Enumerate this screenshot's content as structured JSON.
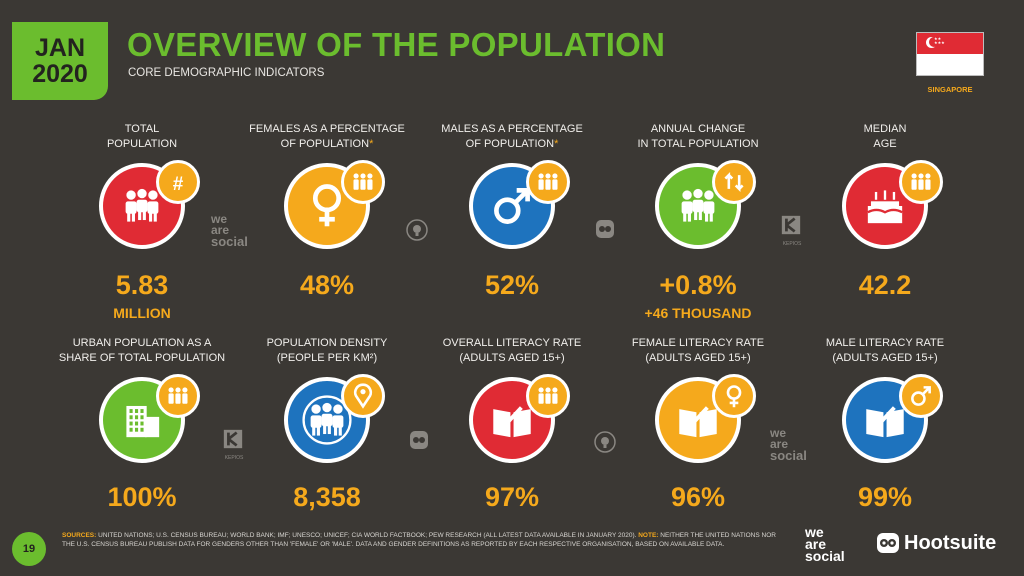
{
  "header": {
    "month": "JAN",
    "year": "2020",
    "title": "OVERVIEW OF THE POPULATION",
    "subtitle": "CORE DEMOGRAPHIC INDICATORS",
    "country": "SINGAPORE"
  },
  "colors": {
    "green": "#6bbd2e",
    "orange": "#f5a91c",
    "red": "#e02b34",
    "blue": "#1e73be",
    "background": "#3b3834"
  },
  "indicators": [
    {
      "label1": "TOTAL",
      "label2": "POPULATION",
      "asterisk": "",
      "value": "5.83",
      "sub": "MILLION",
      "color": "#e02b34",
      "icon": "people-icon",
      "badge_icon": "hash-icon"
    },
    {
      "label1": "FEMALES AS A PERCENTAGE",
      "label2": "OF POPULATION",
      "asterisk": "*",
      "value": "48%",
      "sub": "",
      "color": "#f5a91c",
      "icon": "female-symbol-icon",
      "badge_icon": "people-icon"
    },
    {
      "label1": "MALES AS A PERCENTAGE",
      "label2": "OF POPULATION",
      "asterisk": "*",
      "value": "52%",
      "sub": "",
      "color": "#1e73be",
      "icon": "male-symbol-icon",
      "badge_icon": "people-icon"
    },
    {
      "label1": "ANNUAL CHANGE",
      "label2": "IN TOTAL POPULATION",
      "asterisk": "",
      "value": "+0.8%",
      "sub": "+46 THOUSAND",
      "color": "#6bbd2e",
      "icon": "people-icon",
      "badge_icon": "up-down-arrows-icon"
    },
    {
      "label1": "MEDIAN",
      "label2": "AGE",
      "asterisk": "",
      "value": "42.2",
      "sub": "",
      "color": "#e02b34",
      "icon": "birthday-cake-icon",
      "badge_icon": "people-icon"
    },
    {
      "label1": "URBAN POPULATION AS A",
      "label2": "SHARE OF TOTAL POPULATION",
      "asterisk": "",
      "value": "100%",
      "sub": "",
      "color": "#6bbd2e",
      "icon": "buildings-icon",
      "badge_icon": "people-icon"
    },
    {
      "label1": "POPULATION DENSITY",
      "label2": "(PEOPLE PER KM²)",
      "asterisk": "",
      "value": "8,358",
      "sub": "",
      "color": "#1e73be",
      "icon": "crowd-icon",
      "badge_icon": "map-pin-icon"
    },
    {
      "label1": "OVERALL LITERACY RATE",
      "label2": "(ADULTS AGED 15+)",
      "asterisk": "",
      "value": "97%",
      "sub": "",
      "color": "#e02b34",
      "icon": "book-pen-icon",
      "badge_icon": "people-icon"
    },
    {
      "label1": "FEMALE LITERACY RATE",
      "label2": "(ADULTS AGED 15+)",
      "asterisk": "",
      "value": "96%",
      "sub": "",
      "color": "#f5a91c",
      "icon": "book-pen-icon",
      "badge_icon": "female-symbol-icon"
    },
    {
      "label1": "MALE LITERACY RATE",
      "label2": "(ADULTS AGED 15+)",
      "asterisk": "",
      "value": "99%",
      "sub": "",
      "color": "#1e73be",
      "icon": "book-pen-icon",
      "badge_icon": "male-symbol-icon"
    }
  ],
  "watermarks": {
    "we_are_social_1": "we",
    "we_are_social_2": "are",
    "we_are_social_3": "social",
    "kepios": "KEPIOS"
  },
  "footer": {
    "page_number": "19",
    "sources_label": "SOURCES:",
    "sources_text": "UNITED NATIONS; U.S. CENSUS BUREAU; WORLD BANK; IMF; UNESCO; UNICEF; CIA WORLD FACTBOOK; PEW RESEARCH (ALL LATEST DATA AVAILABLE IN JANUARY 2020).",
    "note_label": "NOTE:",
    "note_text": "NEITHER THE UNITED NATIONS NOR THE U.S. CENSUS BUREAU PUBLISH DATA FOR GENDERS OTHER THAN 'FEMALE' OR 'MALE'. DATA AND GENDER DEFINITIONS AS REPORTED BY EACH RESPECTIVE ORGANISATION, BASED ON AVAILABLE DATA.",
    "logo_1": "we",
    "logo_2": "are",
    "logo_3": "social",
    "hootsuite": "Hootsuite"
  }
}
